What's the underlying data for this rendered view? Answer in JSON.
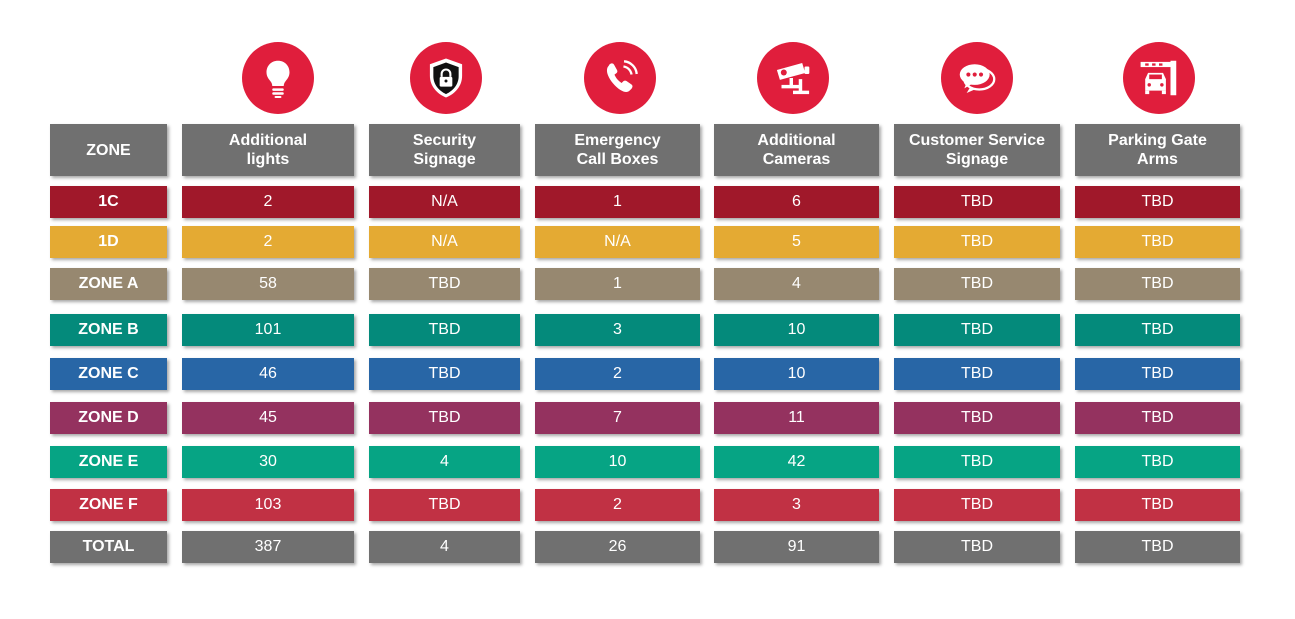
{
  "colors": {
    "icon_bg": "#e01e3c",
    "header_bg": "#707070"
  },
  "icons": [
    {
      "name": "lightbulb-icon"
    },
    {
      "name": "security-shield-lock-icon"
    },
    {
      "name": "phone-call-icon"
    },
    {
      "name": "security-camera-icon"
    },
    {
      "name": "chat-bubbles-icon"
    },
    {
      "name": "parking-gate-car-icon"
    }
  ],
  "headers": [
    "ZONE",
    "Additional\nlights",
    "Security\nSignage",
    "Emergency\nCall Boxes",
    "Additional\nCameras",
    "Customer Service\nSignage",
    "Parking Gate\nArms"
  ],
  "rows": [
    {
      "zone": "1C",
      "color": "#a0182a",
      "values": [
        "2",
        "N/A",
        "1",
        "6",
        "TBD",
        "TBD"
      ]
    },
    {
      "zone": "1D",
      "color": "#e4aa33",
      "values": [
        "2",
        "N/A",
        "N/A",
        "5",
        "TBD",
        "TBD"
      ]
    },
    {
      "zone": "ZONE A",
      "color": "#978870",
      "values": [
        "58",
        "TBD",
        "1",
        "4",
        "TBD",
        "TBD"
      ]
    },
    {
      "zone": "ZONE B",
      "color": "#048a7b",
      "values": [
        "101",
        "TBD",
        "3",
        "10",
        "TBD",
        "TBD"
      ]
    },
    {
      "zone": "ZONE C",
      "color": "#2866a6",
      "values": [
        "46",
        "TBD",
        "2",
        "10",
        "TBD",
        "TBD"
      ]
    },
    {
      "zone": "ZONE D",
      "color": "#94325f",
      "values": [
        "45",
        "TBD",
        "7",
        "11",
        "TBD",
        "TBD"
      ]
    },
    {
      "zone": "ZONE E",
      "color": "#06a484",
      "values": [
        "30",
        "4",
        "10",
        "42",
        "TBD",
        "TBD"
      ]
    },
    {
      "zone": "ZONE F",
      "color": "#c13144",
      "values": [
        "103",
        "TBD",
        "2",
        "3",
        "TBD",
        "TBD"
      ]
    },
    {
      "zone": "TOTAL",
      "color": "#707070",
      "values": [
        "387",
        "4",
        "26",
        "91",
        "TBD",
        "TBD"
      ]
    }
  ]
}
